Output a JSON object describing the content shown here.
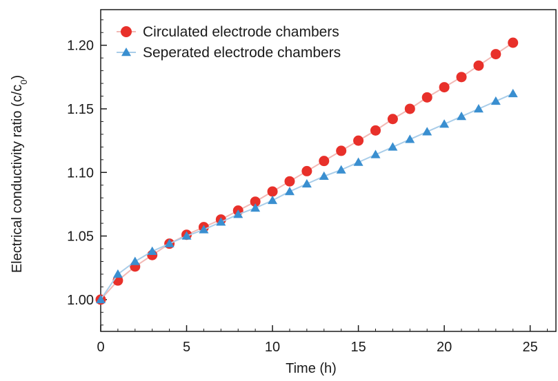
{
  "chart_data": {
    "type": "scatter",
    "xlabel": "Time (h)",
    "ylabel": "Electrical conductivity ratio (c/c",
    "ylabel_sub": "0",
    "ylabel_end": ")",
    "xlim": [
      0,
      26.5
    ],
    "ylim": [
      0.975,
      1.228
    ],
    "xticks": [
      0,
      5,
      10,
      15,
      20,
      25
    ],
    "xtick_labels": [
      "0",
      "5",
      "10",
      "15",
      "20",
      "25"
    ],
    "yticks": [
      1.0,
      1.05,
      1.1,
      1.15,
      1.2
    ],
    "ytick_labels": [
      "1.00",
      "1.05",
      "1.10",
      "1.15",
      "1.20"
    ],
    "grid": false,
    "legend_position": "top-left",
    "series": [
      {
        "name": "Circulated electrode chambers",
        "marker": "circle",
        "color": "#e8302a",
        "line_color": "#f2b8b4",
        "x": [
          0,
          1,
          2,
          3,
          4,
          5,
          6,
          7,
          8,
          9,
          10,
          11,
          12,
          13,
          14,
          15,
          16,
          17,
          18,
          19,
          20,
          21,
          22,
          23,
          24
        ],
        "y": [
          1.0,
          1.015,
          1.026,
          1.035,
          1.044,
          1.051,
          1.057,
          1.063,
          1.07,
          1.077,
          1.085,
          1.093,
          1.101,
          1.109,
          1.117,
          1.125,
          1.133,
          1.142,
          1.15,
          1.159,
          1.167,
          1.175,
          1.184,
          1.193,
          1.202
        ]
      },
      {
        "name": "Seperated electrode chambers",
        "marker": "triangle",
        "color": "#3a8fd0",
        "line_color": "#a9cde9",
        "x": [
          0,
          1,
          2,
          3,
          4,
          5,
          6,
          7,
          8,
          9,
          10,
          11,
          12,
          13,
          14,
          15,
          16,
          17,
          18,
          19,
          20,
          21,
          22,
          23,
          24
        ],
        "y": [
          1.0,
          1.02,
          1.03,
          1.038,
          1.044,
          1.05,
          1.055,
          1.061,
          1.067,
          1.072,
          1.078,
          1.085,
          1.091,
          1.097,
          1.102,
          1.108,
          1.114,
          1.12,
          1.126,
          1.132,
          1.138,
          1.144,
          1.15,
          1.156,
          1.162
        ]
      }
    ]
  }
}
